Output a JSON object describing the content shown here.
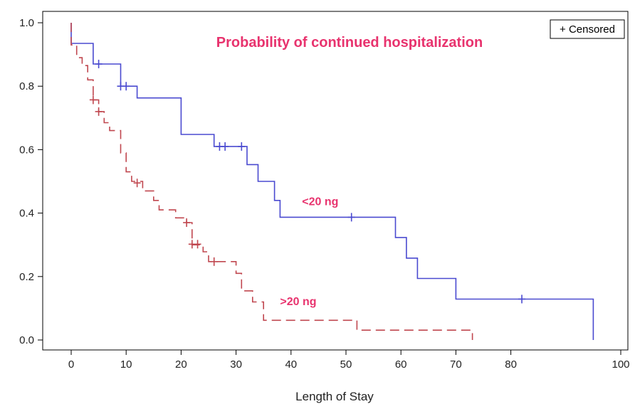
{
  "chart_data": {
    "type": "line",
    "subtype": "kaplan-meier step",
    "title": "Probability of continued hospitalization",
    "xlabel": "Length of Stay",
    "ylabel": "",
    "xlim": [
      -4,
      100
    ],
    "ylim": [
      0,
      1.0
    ],
    "x_ticks": [
      0,
      10,
      20,
      30,
      40,
      50,
      60,
      70,
      80,
      100
    ],
    "x_tick_labels": [
      "0",
      "10",
      "20",
      "30",
      "40",
      "50",
      "60",
      "70",
      "80",
      "100"
    ],
    "y_ticks": [
      0,
      0.2,
      0.4,
      0.6,
      0.8,
      1.0
    ],
    "y_tick_labels": [
      "0.0",
      "0.2",
      "0.4",
      "0.6",
      "0.8",
      "1.0"
    ],
    "legend": {
      "position": "top-right",
      "label": "+ Censored"
    },
    "colors": {
      "title": "#e8336e",
      "annotation": "#e8336e",
      "axis": "#000000"
    },
    "series": [
      {
        "name": "<20 ng",
        "color": "#4a4ad0",
        "dash": "solid",
        "steps": [
          [
            0,
            1.0
          ],
          [
            0,
            0.935
          ],
          [
            4,
            0.935
          ],
          [
            4,
            0.87
          ],
          [
            9,
            0.87
          ],
          [
            9,
            0.8
          ],
          [
            12,
            0.8
          ],
          [
            12,
            0.763
          ],
          [
            20,
            0.763
          ],
          [
            20,
            0.648
          ],
          [
            26,
            0.648
          ],
          [
            26,
            0.61
          ],
          [
            32,
            0.61
          ],
          [
            32,
            0.553
          ],
          [
            34,
            0.553
          ],
          [
            34,
            0.5
          ],
          [
            37,
            0.5
          ],
          [
            37,
            0.44
          ],
          [
            38,
            0.44
          ],
          [
            38,
            0.387
          ],
          [
            59,
            0.387
          ],
          [
            59,
            0.323
          ],
          [
            61,
            0.323
          ],
          [
            61,
            0.258
          ],
          [
            63,
            0.258
          ],
          [
            63,
            0.194
          ],
          [
            70,
            0.194
          ],
          [
            70,
            0.129
          ],
          [
            95,
            0.129
          ],
          [
            95,
            0.0
          ]
        ],
        "censored": [
          [
            5,
            0.87
          ],
          [
            9,
            0.8
          ],
          [
            10,
            0.8
          ],
          [
            27,
            0.61
          ],
          [
            28,
            0.61
          ],
          [
            31,
            0.61
          ],
          [
            51,
            0.387
          ],
          [
            82,
            0.129
          ]
        ]
      },
      {
        "name": ">20 ng",
        "color": "#c0474f",
        "dash": "dashed",
        "steps": [
          [
            0,
            1.0
          ],
          [
            0,
            0.93
          ],
          [
            1,
            0.93
          ],
          [
            1,
            0.89
          ],
          [
            2,
            0.89
          ],
          [
            2,
            0.865
          ],
          [
            3,
            0.865
          ],
          [
            3,
            0.82
          ],
          [
            4,
            0.82
          ],
          [
            4,
            0.757
          ],
          [
            5,
            0.757
          ],
          [
            5,
            0.72
          ],
          [
            6,
            0.72
          ],
          [
            6,
            0.685
          ],
          [
            7,
            0.685
          ],
          [
            7,
            0.66
          ],
          [
            9,
            0.66
          ],
          [
            9,
            0.59
          ],
          [
            10,
            0.59
          ],
          [
            10,
            0.53
          ],
          [
            11,
            0.53
          ],
          [
            11,
            0.5
          ],
          [
            13,
            0.5
          ],
          [
            13,
            0.47
          ],
          [
            15,
            0.47
          ],
          [
            15,
            0.44
          ],
          [
            16,
            0.44
          ],
          [
            16,
            0.41
          ],
          [
            19,
            0.41
          ],
          [
            19,
            0.385
          ],
          [
            21,
            0.385
          ],
          [
            21,
            0.37
          ],
          [
            22,
            0.37
          ],
          [
            22,
            0.3
          ],
          [
            24,
            0.3
          ],
          [
            24,
            0.278
          ],
          [
            25,
            0.278
          ],
          [
            25,
            0.247
          ],
          [
            30,
            0.247
          ],
          [
            30,
            0.21
          ],
          [
            31,
            0.21
          ],
          [
            31,
            0.155
          ],
          [
            33,
            0.155
          ],
          [
            33,
            0.12
          ],
          [
            35,
            0.12
          ],
          [
            35,
            0.062
          ],
          [
            52,
            0.062
          ],
          [
            52,
            0.031
          ],
          [
            73,
            0.031
          ],
          [
            73,
            0.0
          ]
        ],
        "censored": [
          [
            4,
            0.757
          ],
          [
            5,
            0.72
          ],
          [
            12,
            0.495
          ],
          [
            21,
            0.37
          ],
          [
            22,
            0.302
          ],
          [
            23,
            0.302
          ],
          [
            26,
            0.247
          ]
        ]
      }
    ],
    "annotations": [
      {
        "text": "<20 ng",
        "x": 42,
        "y": 0.425,
        "series": "<20 ng"
      },
      {
        "text": ">20 ng",
        "x": 38,
        "y": 0.11,
        "series": ">20 ng"
      }
    ]
  }
}
